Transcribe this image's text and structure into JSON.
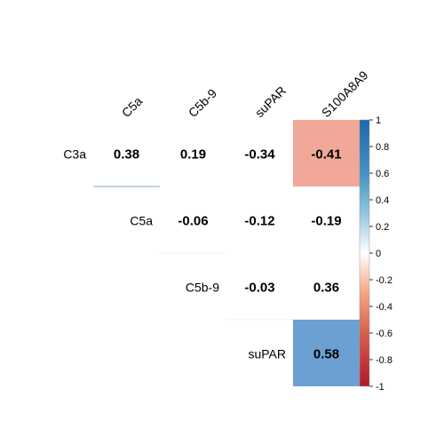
{
  "chart_data": {
    "type": "heatmap",
    "title": "",
    "columns": [
      "C5a",
      "C5b-9",
      "suPAR",
      "S100A8A9"
    ],
    "rows": [
      "C3a",
      "C5a",
      "C5b-9",
      "suPAR"
    ],
    "cells": [
      {
        "row": "C3a",
        "col": "C5a",
        "value": 0.38,
        "label": "0.38"
      },
      {
        "row": "C3a",
        "col": "C5b-9",
        "value": 0.19,
        "label": "0.19"
      },
      {
        "row": "C3a",
        "col": "suPAR",
        "value": -0.34,
        "label": "-0.34"
      },
      {
        "row": "C3a",
        "col": "S100A8A9",
        "value": -0.41,
        "label": "-0.41"
      },
      {
        "row": "C5a",
        "col": "C5b-9",
        "value": -0.06,
        "label": "-0.06"
      },
      {
        "row": "C5a",
        "col": "suPAR",
        "value": -0.12,
        "label": "-0.12"
      },
      {
        "row": "C5a",
        "col": "S100A8A9",
        "value": -0.19,
        "label": "-0.19"
      },
      {
        "row": "C5b-9",
        "col": "suPAR",
        "value": -0.03,
        "label": "-0.03"
      },
      {
        "row": "C5b-9",
        "col": "S100A8A9",
        "value": 0.36,
        "label": "0.36"
      },
      {
        "row": "suPAR",
        "col": "S100A8A9",
        "value": 0.58,
        "label": "0.58"
      }
    ],
    "highlighted_cells": [
      {
        "row": "C3a",
        "col": "S100A8A9",
        "color": "#F1A898"
      },
      {
        "row": "suPAR",
        "col": "S100A8A9",
        "color": "#6C9FD2"
      }
    ],
    "colorbar": {
      "range": [
        -1,
        1
      ],
      "ticks": [
        "1",
        "0.8",
        "0.6",
        "0.4",
        "0.2",
        "0",
        "-0.2",
        "-0.4",
        "-0.6",
        "-0.8",
        "-1"
      ],
      "colors": {
        "positive": "#2166AC",
        "zero": "#FFFFFF",
        "negative": "#B2182B"
      }
    }
  }
}
